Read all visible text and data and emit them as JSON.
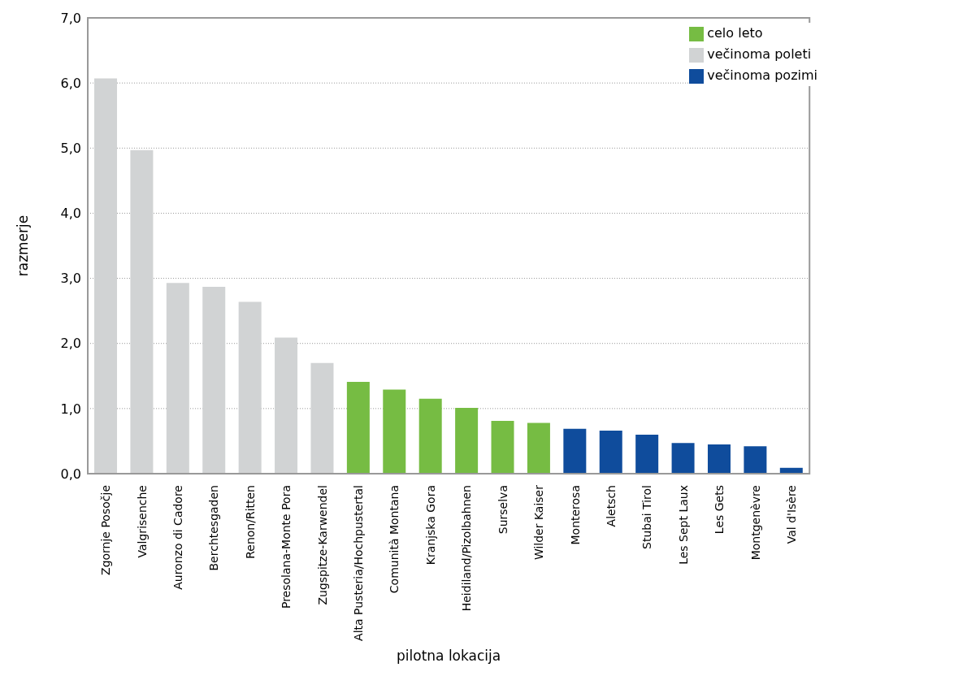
{
  "chart_data": {
    "type": "bar",
    "xlabel": "pilotna lokacija",
    "ylabel": "razmerje",
    "categories": [
      "Zgornje Posočje",
      "Valgrisenche",
      "Auronzo di Cadore",
      "Berchtesgaden",
      "Renon/Ritten",
      "Presolana-Monte Pora",
      "Zugspitze-Karwendel",
      "Alta Pusteria/Hochpustertal",
      "Comunità Montana",
      "Kranjska Gora",
      "Heidiland/Pizolbahnen",
      "Surselva",
      "Wilder Kaiser",
      "Monterosa",
      "Aletsch",
      "Stubai Tirol",
      "Les Sept Laux",
      "Les Gets",
      "Montgenèvre",
      "Val d'Isère"
    ],
    "series": [
      {
        "name": "večinoma poleti",
        "color": "#d1d3d4",
        "values": [
          6.07,
          4.97,
          2.93,
          2.87,
          2.64,
          2.09,
          1.7,
          null,
          null,
          null,
          null,
          null,
          null,
          null,
          null,
          null,
          null,
          null,
          null,
          null
        ]
      },
      {
        "name": "večinoma pozimi",
        "color": "#0f4c9c",
        "values": [
          null,
          null,
          null,
          null,
          null,
          null,
          null,
          null,
          null,
          null,
          null,
          null,
          null,
          0.69,
          0.66,
          0.6,
          0.47,
          0.45,
          0.42,
          0.09
        ]
      },
      {
        "name": "celo leto",
        "color": "#76bc43",
        "values": [
          null,
          null,
          null,
          null,
          null,
          null,
          null,
          1.41,
          1.29,
          1.15,
          1.01,
          0.81,
          0.78,
          null,
          null,
          null,
          null,
          null,
          null,
          null
        ]
      }
    ],
    "ylim": [
      0,
      7
    ],
    "yticks": [
      {
        "value": 0,
        "label": "0,0"
      },
      {
        "value": 1,
        "label": "1,0"
      },
      {
        "value": 2,
        "label": "2,0"
      },
      {
        "value": 3,
        "label": "3,0"
      },
      {
        "value": 4,
        "label": "4,0"
      },
      {
        "value": 5,
        "label": "5,0"
      },
      {
        "value": 6,
        "label": "6,0"
      },
      {
        "value": 7,
        "label": "7,0"
      }
    ],
    "grid": "y",
    "legend": "top right"
  }
}
